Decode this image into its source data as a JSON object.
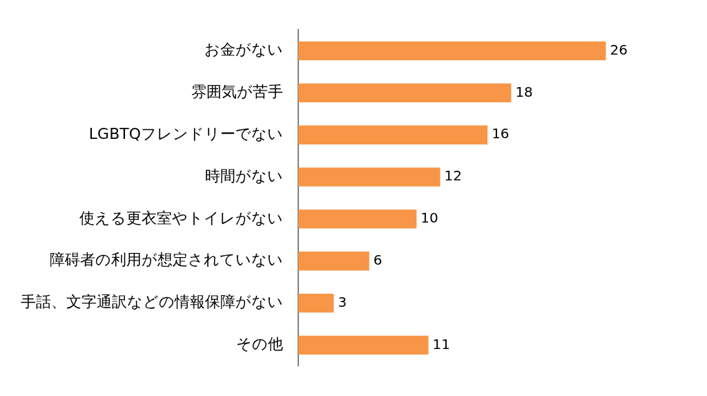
{
  "chart_data": {
    "type": "bar",
    "orientation": "horizontal",
    "categories": [
      "お金がない",
      "雰囲気が苦手",
      "LGBTQフレンドリーでない",
      "時間がない",
      "使える更衣室やトイレがない",
      "障碍者の利用が想定されていない",
      "手話、文字通訳などの情報保障がない",
      "その他"
    ],
    "values": [
      26,
      18,
      16,
      12,
      10,
      6,
      3,
      11
    ],
    "color": "#f79646",
    "data_labels": true
  }
}
